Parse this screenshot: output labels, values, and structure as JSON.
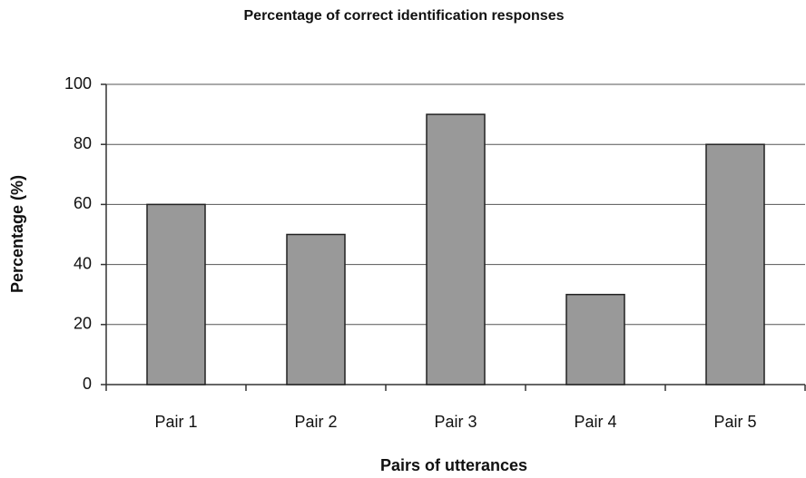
{
  "chart_data": {
    "type": "bar",
    "title": "Percentage of correct identification responses",
    "x_label": "Pairs of utterances",
    "y_label": "Percentage (%)",
    "categories": [
      "Pair 1",
      "Pair 2",
      "Pair 3",
      "Pair 4",
      "Pair 5"
    ],
    "values": [
      60,
      50,
      90,
      30,
      80
    ],
    "color": "#999999",
    "ylim": [
      0,
      100
    ],
    "yticks": [
      0,
      20,
      40,
      60,
      80,
      100
    ],
    "grid": true
  }
}
